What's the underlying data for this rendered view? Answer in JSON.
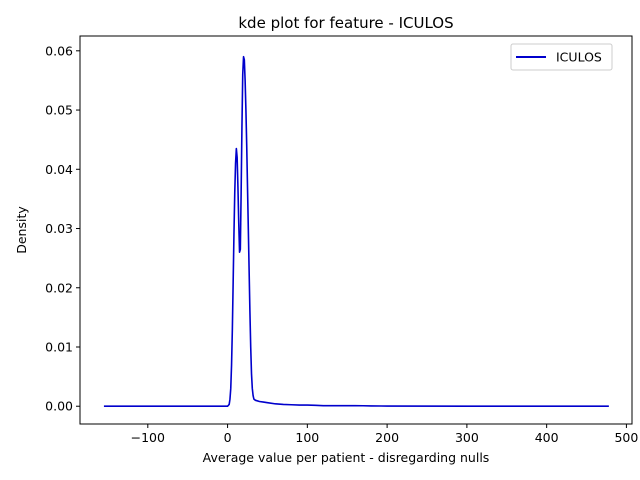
{
  "chart_data": {
    "type": "line",
    "title": "kde plot for feature -  ICULOS",
    "xlabel": "Average value per patient - disregarding nulls",
    "ylabel": "Density",
    "xlim": [
      -185,
      507
    ],
    "ylim": [
      -0.003,
      0.0625
    ],
    "xticks": [
      -100,
      0,
      100,
      200,
      300,
      400,
      500
    ],
    "xtick_labels": [
      "−100",
      "0",
      "100",
      "200",
      "300",
      "400",
      "500"
    ],
    "yticks": [
      0.0,
      0.01,
      0.02,
      0.03,
      0.04,
      0.05,
      0.06
    ],
    "ytick_labels": [
      "0.00",
      "0.01",
      "0.02",
      "0.03",
      "0.04",
      "0.05",
      "0.06"
    ],
    "grid": false,
    "legend": "top-right",
    "series": [
      {
        "name": "ICULOS",
        "color": "#0000cc",
        "x": [
          -155,
          0,
          2,
          3,
          4,
          5,
          6,
          7,
          8,
          9,
          10,
          11,
          12,
          13,
          14,
          15,
          16,
          17,
          18,
          19,
          20,
          21,
          22,
          23,
          24,
          25,
          26,
          27,
          28,
          29,
          30,
          31,
          32,
          33,
          35,
          40,
          45,
          50,
          60,
          70,
          80,
          90,
          100,
          110,
          120,
          140,
          160,
          170,
          180,
          200,
          300,
          400,
          478
        ],
        "y": [
          0.0,
          0.0,
          0.0003,
          0.0012,
          0.003,
          0.007,
          0.013,
          0.021,
          0.029,
          0.036,
          0.041,
          0.0435,
          0.042,
          0.037,
          0.031,
          0.026,
          0.0265,
          0.036,
          0.047,
          0.056,
          0.059,
          0.0585,
          0.055,
          0.05,
          0.044,
          0.037,
          0.03,
          0.023,
          0.016,
          0.01,
          0.0055,
          0.003,
          0.0018,
          0.0012,
          0.001,
          0.0008,
          0.0007,
          0.0006,
          0.0004,
          0.0003,
          0.00025,
          0.0002,
          0.0002,
          0.00015,
          0.0001,
          0.0001,
          0.0001,
          8e-05,
          5e-05,
          3e-05,
          0.0,
          0.0,
          0.0
        ]
      }
    ]
  }
}
